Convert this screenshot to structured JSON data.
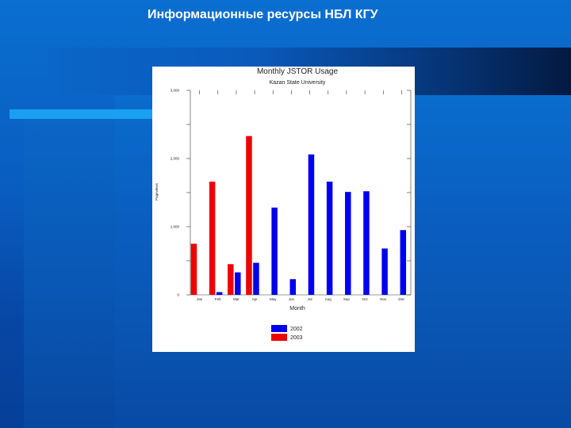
{
  "slide": {
    "title": "Информационные ресурсы НБЛ КГУ"
  },
  "colors": {
    "background": "#0a5cc0",
    "series_2002": "#0000ee",
    "series_2003": "#ee0000",
    "accent_stripe": "#1aa0f0"
  },
  "chart_data": {
    "type": "bar",
    "title": "Monthly JSTOR Usage",
    "subtitle": "Kazan State University",
    "xlabel": "Month",
    "ylabel": "Pageviews",
    "categories": [
      "Jan",
      "Feb",
      "Mar",
      "Apr",
      "May",
      "Jun",
      "Jul",
      "Aug",
      "Sep",
      "Oct",
      "Nov",
      "Dec"
    ],
    "ylim": [
      0,
      3000
    ],
    "yticks": [
      0,
      500,
      1000,
      1500,
      2000,
      2500,
      3000
    ],
    "ytick_labels": [
      "0",
      "",
      "1,000",
      "",
      "2,000",
      "",
      "3,000"
    ],
    "grid": false,
    "legend_position": "bottom-center",
    "series": [
      {
        "name": "2002",
        "color": "#0000ee",
        "values": [
          0,
          40,
          330,
          470,
          1280,
          230,
          2060,
          1660,
          1510,
          1520,
          680,
          950
        ]
      },
      {
        "name": "2003",
        "color": "#ee0000",
        "values": [
          750,
          1660,
          450,
          2330,
          0,
          0,
          0,
          0,
          0,
          0,
          0,
          0
        ]
      }
    ]
  }
}
